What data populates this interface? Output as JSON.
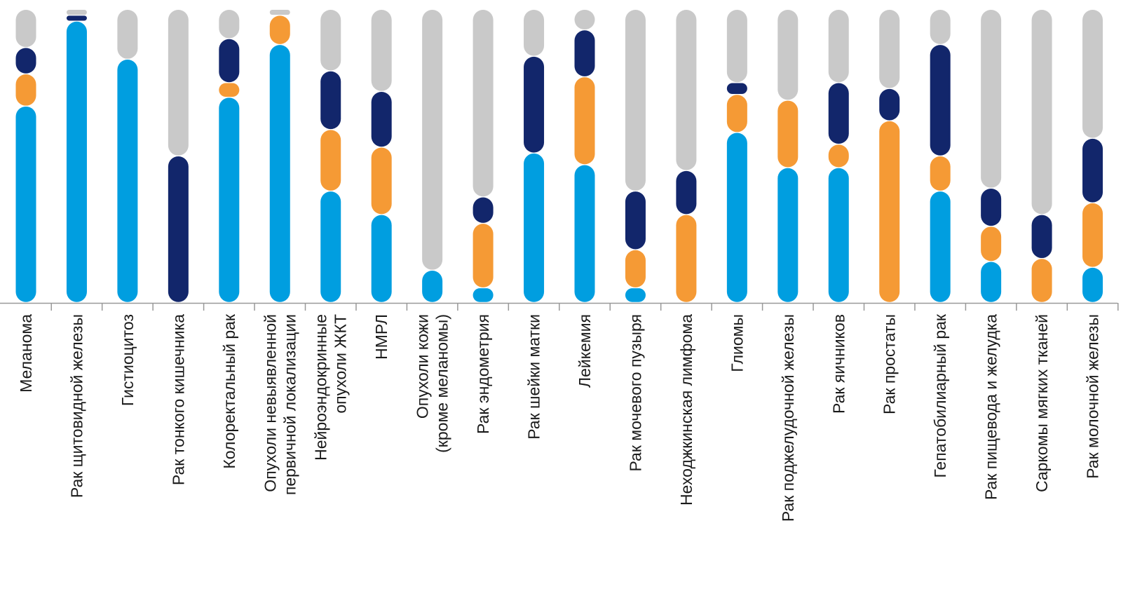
{
  "chart_data": {
    "type": "bar",
    "stacked": true,
    "orientation": "vertical",
    "ylim": [
      0,
      100
    ],
    "y_axis_visible": false,
    "legend": "none",
    "grid": false,
    "bar_style": "rounded segments",
    "colors": {
      "light_blue": "#009ee0",
      "orange": "#f59a35",
      "navy": "#12266b",
      "gray": "#c9c9c9",
      "axis": "#999999"
    },
    "categories": [
      [
        "Меланома"
      ],
      [
        "Рак щитовидной железы"
      ],
      [
        "Гистиоцитоз"
      ],
      [
        "Рак тонкого кишечника"
      ],
      [
        "Колоректальный рак"
      ],
      [
        "Опухоли невыявленной",
        "первичной локализации"
      ],
      [
        "Нейроэндокринные",
        "опухоли ЖКТ"
      ],
      [
        "НМРЛ"
      ],
      [
        "Опухоли кожи",
        "(кроме меланомы)"
      ],
      [
        "Рак эндометрия"
      ],
      [
        "Рак шейки матки"
      ],
      [
        "Лейкемия"
      ],
      [
        "Рак мочевого пузыря"
      ],
      [
        "Неходжкинская лимфома"
      ],
      [
        "Глиомы"
      ],
      [
        "Рак поджелудочной железы"
      ],
      [
        "Рак яичников"
      ],
      [
        "Рак простаты"
      ],
      [
        "Гепатобилиарный рак"
      ],
      [
        "Рак пищевода и желудка"
      ],
      [
        "Саркомы мягких тканей"
      ],
      [
        "Рак молочной железы"
      ]
    ],
    "series": [
      {
        "color": "light_blue",
        "values": [
          67,
          96,
          83,
          0,
          70,
          88,
          38,
          30,
          11,
          5,
          51,
          47,
          5,
          0,
          58,
          46,
          46,
          0,
          38,
          14,
          0,
          12
        ]
      },
      {
        "color": "orange",
        "values": [
          11,
          0,
          0,
          0,
          5,
          10,
          21,
          23,
          0,
          22,
          0,
          30,
          13,
          30,
          13,
          23,
          8,
          62,
          12,
          12,
          15,
          22
        ]
      },
      {
        "color": "navy",
        "values": [
          9,
          2,
          0,
          50,
          15,
          0,
          20,
          19,
          0,
          9,
          33,
          16,
          20,
          15,
          4,
          0,
          21,
          11,
          38,
          13,
          15,
          22
        ]
      },
      {
        "color": "gray",
        "values": [
          13,
          2,
          17,
          50,
          10,
          2,
          21,
          28,
          89,
          64,
          16,
          7,
          62,
          55,
          25,
          31,
          25,
          27,
          12,
          61,
          70,
          44
        ]
      }
    ]
  }
}
